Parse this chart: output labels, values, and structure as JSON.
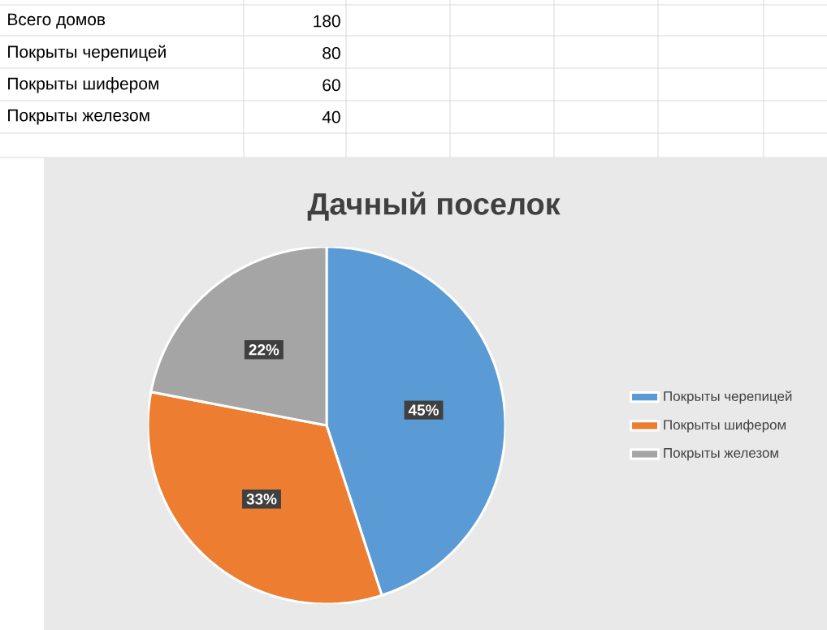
{
  "chart_data": {
    "type": "pie",
    "title": "Дачный поселок",
    "categories": [
      "Покрыты черепицей",
      "Покрыты шифером",
      "Покрыты железом"
    ],
    "values": [
      45,
      33,
      22
    ],
    "value_labels": [
      "45%",
      "33%",
      "22%"
    ],
    "colors": [
      "#5b9bd5",
      "#ed7d31",
      "#a5a5a5"
    ],
    "legend": "right",
    "annotations": [
      "Всего домов",
      "180",
      "Покрыты черепицей",
      "80",
      "Покрыты шифером",
      "60",
      "Покрыты железом",
      "40"
    ]
  }
}
